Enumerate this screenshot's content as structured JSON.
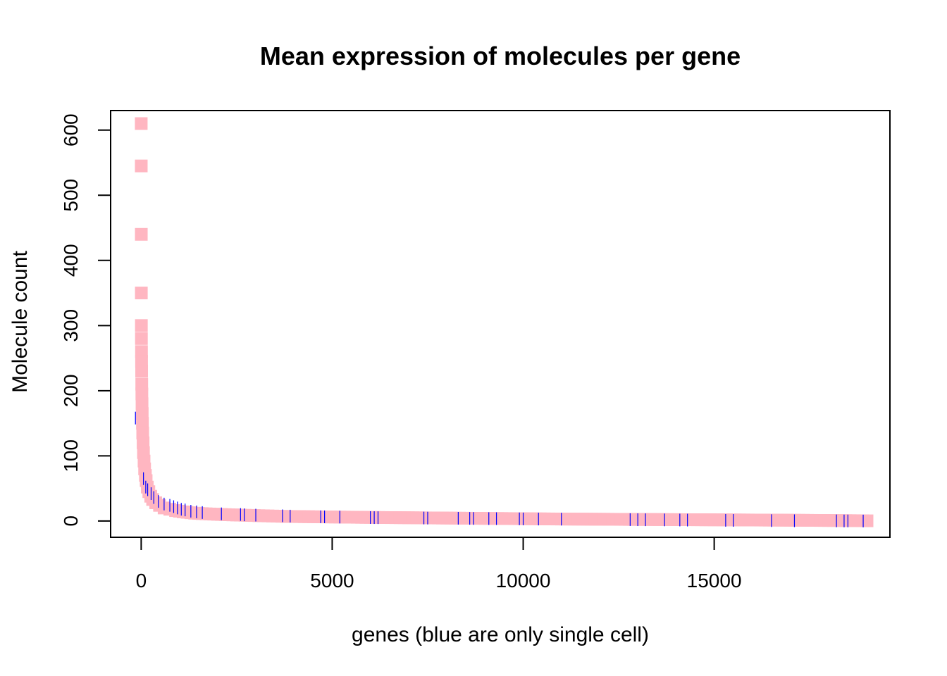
{
  "chart_data": {
    "type": "scatter",
    "title": "Mean expression of molecules per gene",
    "xlabel": "genes (blue are only single cell)",
    "ylabel": "Molecule count",
    "xlim": [
      -800,
      19600
    ],
    "ylim": [
      -25,
      630
    ],
    "x_ticks": [
      0,
      5000,
      10000,
      15000
    ],
    "y_ticks": [
      0,
      100,
      200,
      300,
      400,
      500,
      600
    ],
    "grid": false,
    "legend": "none",
    "colors": {
      "all_genes": "#FFB6C1",
      "single_cell_only": "#0000FF"
    },
    "series": [
      {
        "color": "#FFB6C1",
        "marker": "rect",
        "x": [
          1,
          2,
          3,
          4,
          5,
          6,
          8,
          10,
          12,
          15,
          18,
          22,
          27,
          33,
          40,
          50,
          60,
          75,
          90,
          110,
          130,
          160,
          200,
          250,
          300,
          380,
          480,
          600,
          750,
          900,
          1100,
          1400,
          1700,
          2100,
          2600,
          3200,
          3800,
          4500,
          5200,
          6000,
          7000,
          8000,
          9000,
          10000,
          11000,
          12000,
          13000,
          14000,
          15000,
          16000,
          17000,
          18000,
          19000
        ],
        "y": [
          610,
          545,
          440,
          350,
          300,
          280,
          260,
          245,
          230,
          210,
          195,
          180,
          165,
          150,
          135,
          120,
          105,
          92,
          80,
          70,
          62,
          52,
          45,
          38,
          33,
          28,
          24,
          20,
          18,
          16,
          14,
          12,
          11,
          10,
          9,
          8,
          7,
          6.5,
          6,
          5.5,
          5,
          4.5,
          4,
          3.5,
          3,
          2.7,
          2.4,
          2.1,
          1.8,
          1.5,
          1.2,
          0.8,
          0.3
        ]
      },
      {
        "color": "#0000FF",
        "marker": "tick",
        "x": [
          -150,
          60,
          120,
          170,
          260,
          330,
          450,
          600,
          750,
          850,
          950,
          1050,
          1150,
          1300,
          1450,
          1600,
          2100,
          2600,
          2700,
          3000,
          3700,
          3900,
          4700,
          4800,
          5200,
          6000,
          6100,
          6200,
          7400,
          7500,
          8300,
          8600,
          8700,
          9100,
          9300,
          9900,
          10000,
          10400,
          11000,
          12800,
          13000,
          13200,
          13700,
          14100,
          14300,
          15300,
          15500,
          16500,
          17100,
          18200,
          18400,
          18500,
          18900
        ],
        "y": [
          158,
          65,
          52,
          48,
          42,
          36,
          30,
          26,
          24,
          22,
          20,
          18,
          17,
          15,
          14,
          13,
          11,
          10,
          9.5,
          9,
          8,
          7.5,
          6.5,
          6.4,
          6,
          5.3,
          5.2,
          5.1,
          4.6,
          4.5,
          4.2,
          4,
          3.9,
          3.7,
          3.6,
          3.3,
          3.2,
          3,
          2.8,
          2.1,
          2,
          1.9,
          1.7,
          1.5,
          1.4,
          1,
          0.9,
          0.6,
          0.4,
          0.2,
          0.1,
          0.1,
          0
        ]
      }
    ]
  }
}
